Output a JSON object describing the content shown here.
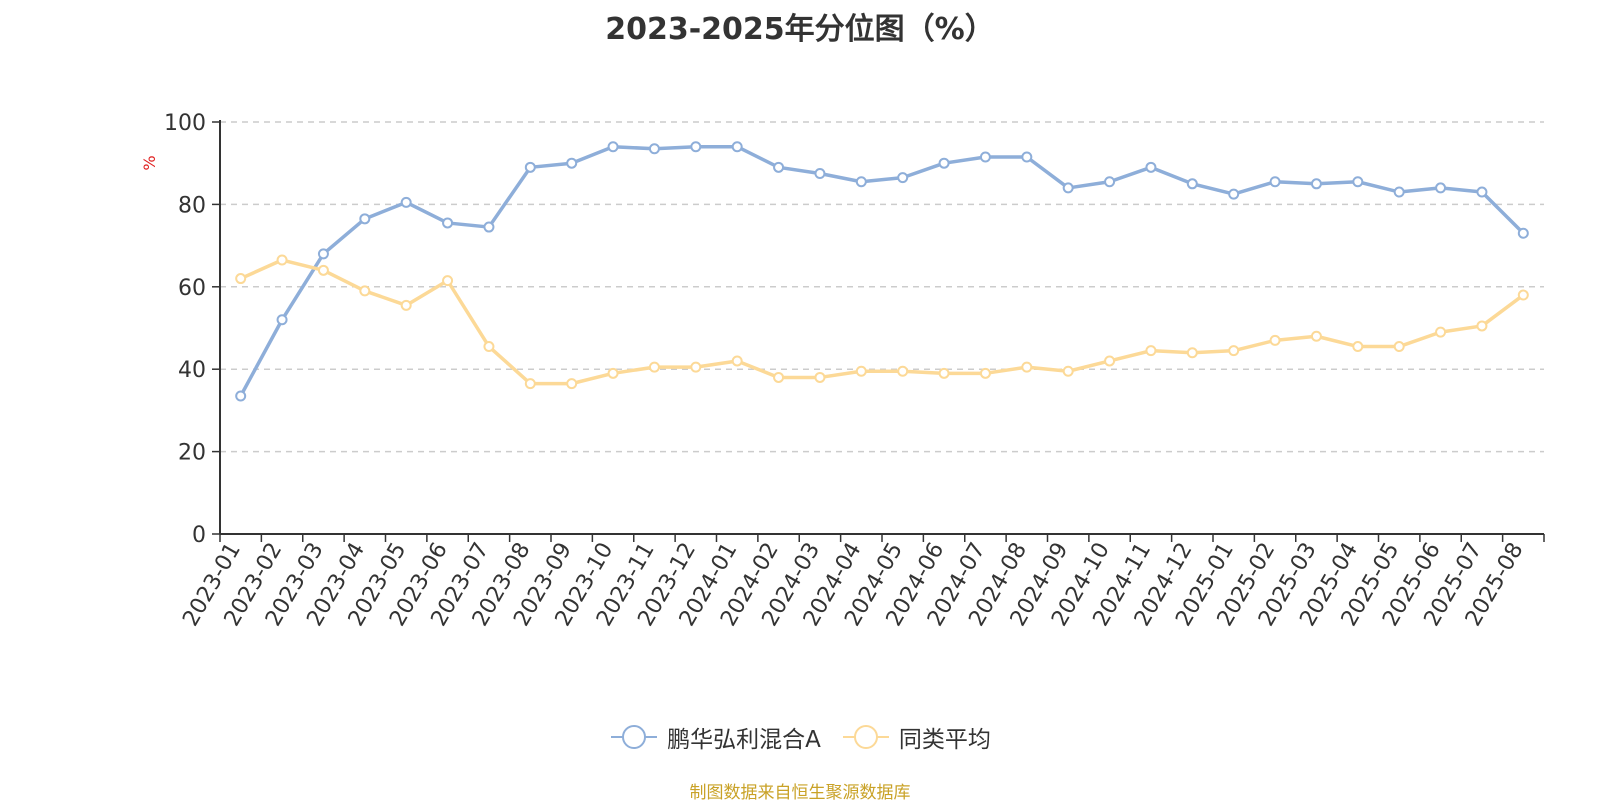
{
  "chart_data": {
    "type": "line",
    "title": "2023-2025年分位图（%）",
    "ylabel": "%",
    "xlabel": "",
    "ylim": [
      0,
      100
    ],
    "yticks": [
      0,
      20,
      40,
      60,
      80,
      100
    ],
    "grid": true,
    "legend_position": "bottom",
    "categories": [
      "2023-01",
      "2023-02",
      "2023-03",
      "2023-04",
      "2023-05",
      "2023-06",
      "2023-07",
      "2023-08",
      "2023-09",
      "2023-10",
      "2023-11",
      "2023-12",
      "2024-01",
      "2024-02",
      "2024-03",
      "2024-04",
      "2024-05",
      "2024-06",
      "2024-07",
      "2024-08",
      "2024-09",
      "2024-10",
      "2024-11",
      "2024-12",
      "2025-01",
      "2025-02",
      "2025-03",
      "2025-04",
      "2025-05",
      "2025-06",
      "2025-07",
      "2025-08"
    ],
    "series": [
      {
        "name": "鹏华弘利混合A",
        "color": "#8eaed9",
        "values": [
          33.5,
          52,
          68,
          76.5,
          80.5,
          75.5,
          74.5,
          89,
          90,
          94,
          93.5,
          94,
          94,
          89,
          87.5,
          85.5,
          86.5,
          90,
          91.5,
          91.5,
          84,
          85.5,
          89,
          85,
          82.5,
          85.5,
          85,
          85.5,
          83,
          84,
          83,
          73
        ]
      },
      {
        "name": "同类平均",
        "color": "#fcd997",
        "values": [
          62,
          66.5,
          64,
          59,
          55.5,
          61.5,
          45.5,
          36.5,
          36.5,
          39,
          40.5,
          40.5,
          42,
          38,
          38,
          39.5,
          39.5,
          39,
          39,
          40.5,
          39.5,
          42,
          44.5,
          44,
          44.5,
          47,
          48,
          45.5,
          45.5,
          49,
          50.5,
          58
        ]
      }
    ]
  },
  "source": "制图数据来自恒生聚源数据库"
}
